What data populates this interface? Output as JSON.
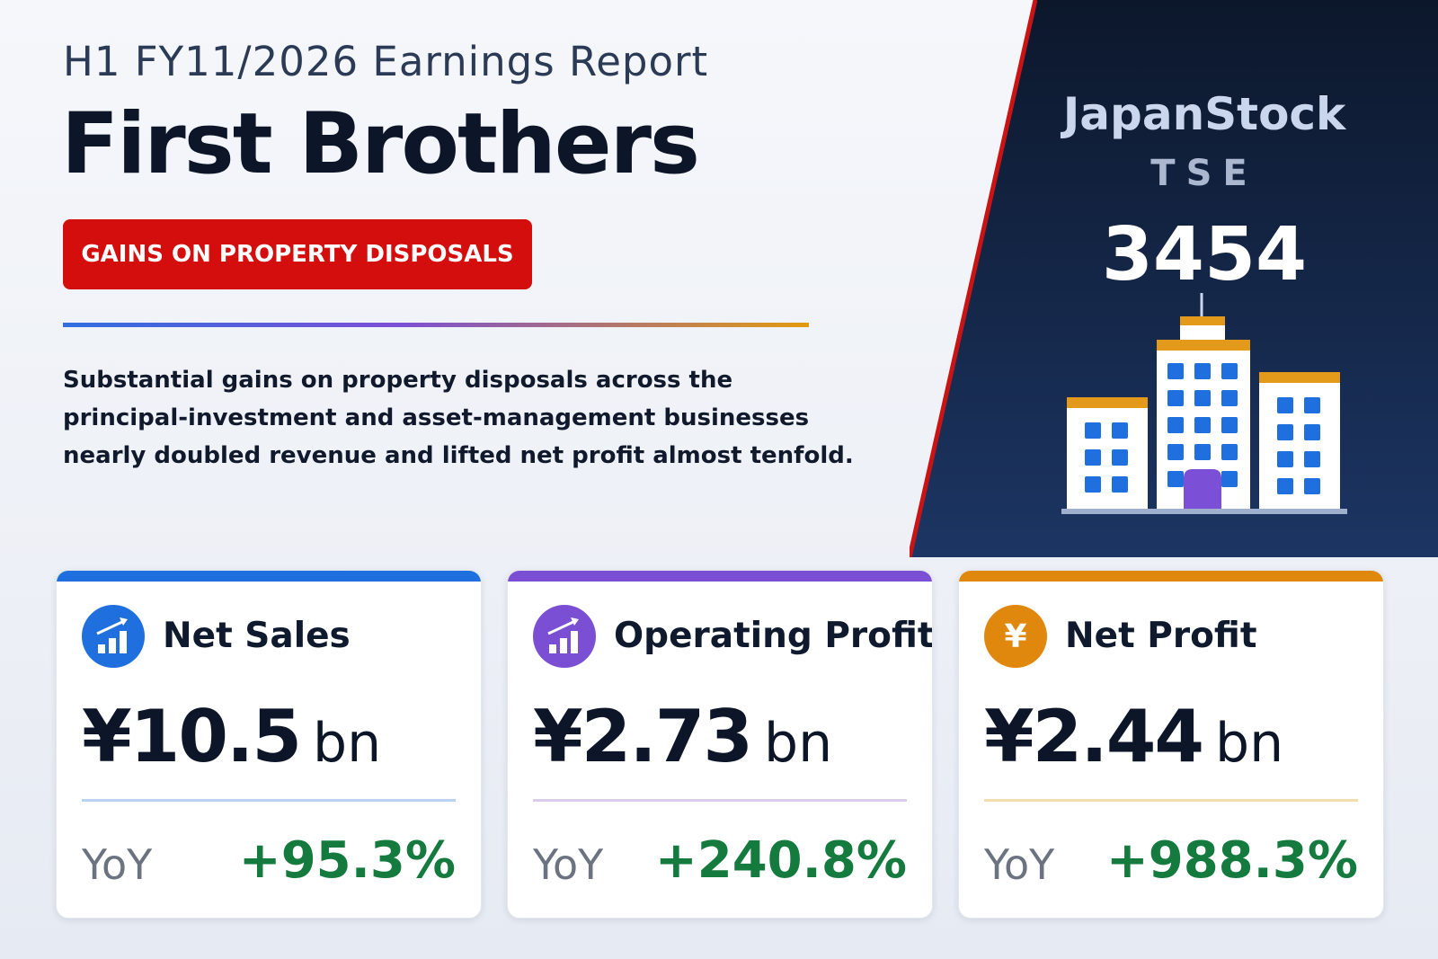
{
  "header": {
    "subtitle": "H1 FY11/2026 Earnings Report",
    "company": "First Brothers",
    "badge": "GAINS ON PROPERTY DISPOSALS",
    "description_lines": [
      "Substantial gains on property disposals across the",
      "principal-investment and asset-management businesses",
      "nearly doubled revenue and lifted net profit almost tenfold."
    ]
  },
  "ticker": {
    "exchange_name": "JapanStock",
    "market": "TSE",
    "code": "3454",
    "icon": "office-buildings-icon"
  },
  "cards": [
    {
      "title": "Net Sales",
      "value": "¥10.5",
      "unit": "bn",
      "yoy_label": "YoY",
      "yoy": "+95.3%",
      "icon": "bar-chart-up-icon",
      "accent": "#1f6fde"
    },
    {
      "title": "Operating Profit",
      "value": "¥2.73",
      "unit": "bn",
      "yoy_label": "YoY",
      "yoy": "+240.8%",
      "icon": "bar-chart-up-icon",
      "accent": "#7a4fd3"
    },
    {
      "title": "Net Profit",
      "value": "¥2.44",
      "unit": "bn",
      "yoy_label": "YoY",
      "yoy": "+988.3%",
      "icon": "yen-icon",
      "icon_symbol": "¥",
      "accent": "#e0880e"
    }
  ],
  "colors": {
    "badge": "#d40d0d",
    "panel_dark": "#0e1b33",
    "panel_edge": "#c81414",
    "positive": "#147a3e"
  }
}
